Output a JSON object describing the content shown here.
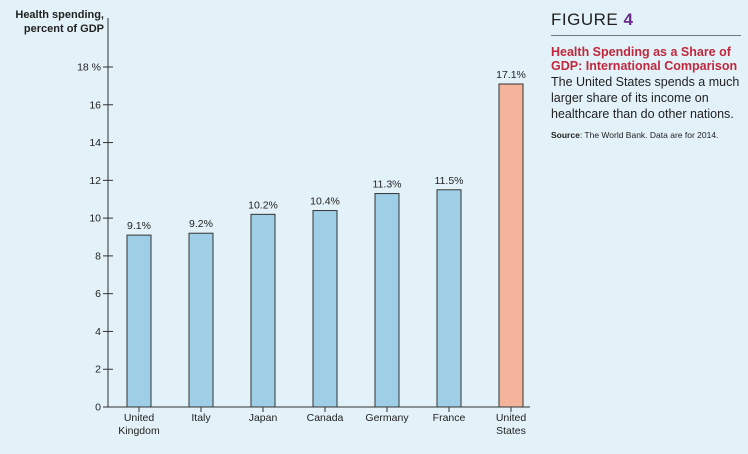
{
  "figure": {
    "label_word": "FIGURE",
    "label_number": "4",
    "title": "Health Spending as a Share of GDP: International Comparison",
    "description": "The United States spends a much larger share of its income on healthcare than do other nations.",
    "source_prefix": "Source",
    "source_text": ": The World Bank. Data are for 2014."
  },
  "colors": {
    "background": "#e3f2f8",
    "bar_default": "#9ecfe6",
    "bar_highlight": "#f4b49c",
    "bar_stroke": "#333333"
  },
  "chart_data": {
    "type": "bar",
    "ylabel_line1": "Health spending,",
    "ylabel_line2": "percent of GDP",
    "ylim": [
      0,
      18
    ],
    "yticks": [
      0,
      2,
      4,
      6,
      8,
      10,
      12,
      14,
      16,
      18
    ],
    "ytick_labels": [
      "0",
      "2",
      "4",
      "6",
      "8",
      "10",
      "12",
      "14",
      "16",
      "18 %"
    ],
    "categories": [
      [
        "United",
        "Kingdom"
      ],
      [
        "Italy"
      ],
      [
        "Japan"
      ],
      [
        "Canada"
      ],
      [
        "Germany"
      ],
      [
        "France"
      ],
      [
        "United",
        "States"
      ]
    ],
    "values": [
      9.1,
      9.2,
      10.2,
      10.4,
      11.3,
      11.5,
      17.1
    ],
    "value_labels": [
      "9.1%",
      "9.2%",
      "10.2%",
      "10.4%",
      "11.3%",
      "11.5%",
      "17.1%"
    ],
    "highlight_index": 6,
    "grid": false
  }
}
